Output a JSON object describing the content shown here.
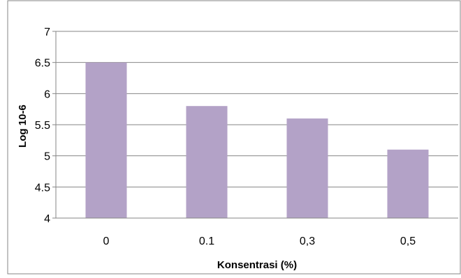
{
  "chart_data": {
    "type": "bar",
    "categories": [
      "0",
      "0.1",
      "0,3",
      "0,5"
    ],
    "values": [
      6.5,
      5.8,
      5.6,
      5.1
    ],
    "y_ticks": [
      "4",
      "4.5",
      "5",
      "5.5",
      "6",
      "6.5",
      "7"
    ],
    "ylim": [
      4,
      7
    ],
    "xlabel": "Konsentrasi (%)",
    "ylabel": "Log 10-6",
    "title": "",
    "grid": true,
    "legend": "none",
    "bar_color": "#b3a2c7",
    "grid_color": "#868686",
    "frame_color": "#868686"
  }
}
